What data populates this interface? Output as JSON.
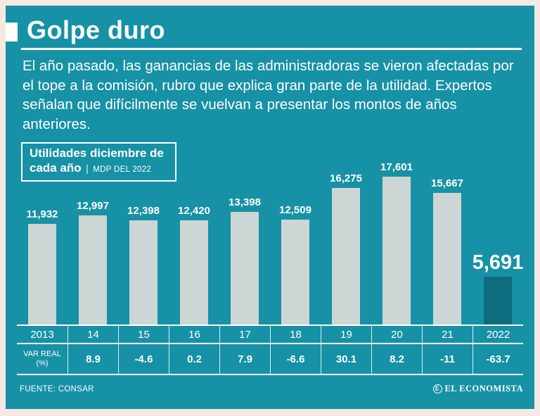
{
  "theme": {
    "background": "#1791a5",
    "frame_color": "#f6e8e2",
    "bar_color": "#ccd6d4",
    "highlight_bar_color": "#0d6c7d",
    "text_color": "#ffffff"
  },
  "header": {
    "title": "Golpe duro",
    "description": "El año pasado, las ganancias de las administradoras se vieron afectadas por el tope a la comisión, rubro que explica gran parte de la utilidad. Expertos señalan que difícilmente se vuelvan a presentar los montos de años anteriores."
  },
  "chart_label": {
    "line1": "Utilidades diciembre de",
    "line2": "cada año",
    "separator": "|",
    "unit": "MDP DEL 2022"
  },
  "chart_data": {
    "type": "bar",
    "title": "Utilidades diciembre de cada año (MDP DEL 2022)",
    "categories": [
      "2013",
      "14",
      "15",
      "16",
      "17",
      "18",
      "19",
      "20",
      "21",
      "2022"
    ],
    "values": [
      11932,
      12997,
      12398,
      12420,
      13398,
      12509,
      16275,
      17601,
      15667,
      5691
    ],
    "value_labels": [
      "11,932",
      "12,997",
      "12,398",
      "12,420",
      "13,398",
      "12,509",
      "16,275",
      "17,601",
      "15,667",
      "5,691"
    ],
    "var_real_header": [
      "VAR REAL",
      "(%)"
    ],
    "var_real": [
      "",
      "8.9",
      "-4.6",
      "0.2",
      "7.9",
      "-6.6",
      "30.1",
      "8.2",
      "-11",
      "-63.7"
    ],
    "highlight_index": 9,
    "ylim": [
      0,
      18000
    ],
    "grid": false,
    "legend": "none"
  },
  "footer": {
    "source": "FUENTE: CONSAR",
    "brand_initial": "E",
    "brand": "EL ECONOMISTA"
  }
}
